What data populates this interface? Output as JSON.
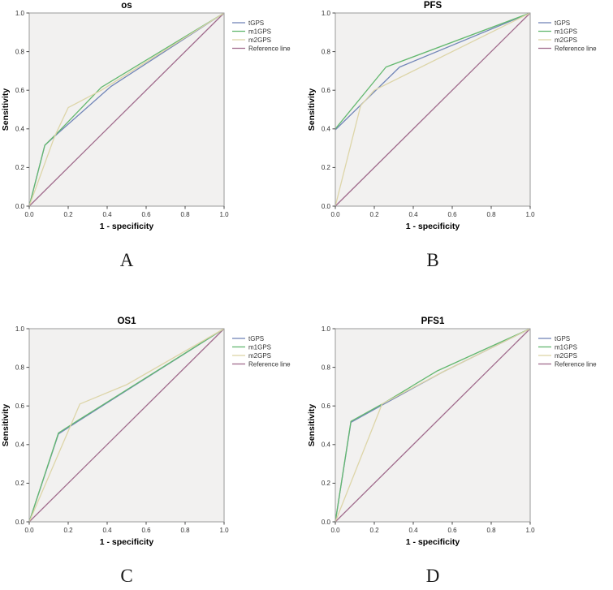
{
  "style": {
    "plot_bg": "#f2f1f0",
    "frame_color": "#9a9a9a",
    "axis_color": "#4a4a4a",
    "text_color": "#333333",
    "title_color": "#000000",
    "series_colors": {
      "tGPS": "#7286b8",
      "m1GPS": "#63b86f",
      "m2GPS": "#ddd5a8",
      "Reference line": "#a06b8c"
    }
  },
  "chart_data": [
    {
      "panel_label": "A",
      "type": "line",
      "title": "os",
      "xlabel": "1 - specificity",
      "ylabel": "Sensitivity",
      "xlim": [
        0,
        1
      ],
      "ylim": [
        0,
        1
      ],
      "xticks": [
        "0.0",
        "0.2",
        "0.4",
        "0.6",
        "0.8",
        "1.0"
      ],
      "yticks": [
        "0.0",
        "0.2",
        "0.4",
        "0.6",
        "0.8",
        "1.0"
      ],
      "grid": false,
      "legend_position": "right",
      "series": [
        {
          "name": "tGPS",
          "color": "#7286b8",
          "points": [
            [
              0,
              0
            ],
            [
              0.08,
              0.315
            ],
            [
              0.15,
              0.38
            ],
            [
              0.42,
              0.62
            ],
            [
              1,
              1
            ]
          ]
        },
        {
          "name": "m1GPS",
          "color": "#63b86f",
          "points": [
            [
              0,
              0
            ],
            [
              0.08,
              0.315
            ],
            [
              0.15,
              0.385
            ],
            [
              0.37,
              0.615
            ],
            [
              1,
              1
            ]
          ]
        },
        {
          "name": "m2GPS",
          "color": "#ddd5a8",
          "points": [
            [
              0,
              0
            ],
            [
              0.13,
              0.36
            ],
            [
              0.2,
              0.51
            ],
            [
              0.37,
              0.6
            ],
            [
              1,
              1
            ]
          ]
        },
        {
          "name": "Reference line",
          "color": "#a06b8c",
          "points": [
            [
              0,
              0
            ],
            [
              1,
              1
            ]
          ]
        }
      ]
    },
    {
      "panel_label": "B",
      "type": "line",
      "title": "PFS",
      "xlabel": "1 - specificity",
      "ylabel": "Sensitivity",
      "xlim": [
        0,
        1
      ],
      "ylim": [
        0,
        1
      ],
      "xticks": [
        "0.0",
        "0.2",
        "0.4",
        "0.6",
        "0.8",
        "1.0"
      ],
      "yticks": [
        "0.0",
        "0.2",
        "0.4",
        "0.6",
        "0.8",
        "1.0"
      ],
      "grid": false,
      "legend_position": "right",
      "series": [
        {
          "name": "tGPS",
          "color": "#7286b8",
          "points": [
            [
              0,
              0.395
            ],
            [
              0.33,
              0.72
            ],
            [
              1,
              1
            ]
          ]
        },
        {
          "name": "m1GPS",
          "color": "#63b86f",
          "points": [
            [
              0,
              0.4
            ],
            [
              0.26,
              0.72
            ],
            [
              1,
              1
            ]
          ]
        },
        {
          "name": "m2GPS",
          "color": "#ddd5a8",
          "points": [
            [
              0,
              0
            ],
            [
              0.13,
              0.52
            ],
            [
              0.2,
              0.6
            ],
            [
              1,
              1
            ]
          ]
        },
        {
          "name": "Reference line",
          "color": "#a06b8c",
          "points": [
            [
              0,
              0
            ],
            [
              1,
              1
            ]
          ]
        }
      ]
    },
    {
      "panel_label": "C",
      "type": "line",
      "title": "OS1",
      "xlabel": "1 - specificity",
      "ylabel": "Sensitivity",
      "xlim": [
        0,
        1
      ],
      "ylim": [
        0,
        1
      ],
      "xticks": [
        "0.0",
        "0.2",
        "0.4",
        "0.6",
        "0.8",
        "1.0"
      ],
      "yticks": [
        "0.0",
        "0.2",
        "0.4",
        "0.6",
        "0.8",
        "1.0"
      ],
      "grid": false,
      "legend_position": "right",
      "series": [
        {
          "name": "tGPS",
          "color": "#7286b8",
          "points": [
            [
              0,
              0
            ],
            [
              0.15,
              0.455
            ],
            [
              0.25,
              0.52
            ],
            [
              1,
              1
            ]
          ]
        },
        {
          "name": "m1GPS",
          "color": "#63b86f",
          "points": [
            [
              0,
              0
            ],
            [
              0.15,
              0.46
            ],
            [
              0.25,
              0.525
            ],
            [
              1,
              1
            ]
          ]
        },
        {
          "name": "m2GPS",
          "color": "#ddd5a8",
          "points": [
            [
              0,
              0
            ],
            [
              0.26,
              0.61
            ],
            [
              0.5,
              0.71
            ],
            [
              1,
              1
            ]
          ]
        },
        {
          "name": "Reference line",
          "color": "#a06b8c",
          "points": [
            [
              0,
              0
            ],
            [
              1,
              1
            ]
          ]
        }
      ]
    },
    {
      "panel_label": "D",
      "type": "line",
      "title": "PFS1",
      "xlabel": "1 - specificity",
      "ylabel": "Sensitivity",
      "xlim": [
        0,
        1
      ],
      "ylim": [
        0,
        1
      ],
      "xticks": [
        "0.0",
        "0.2",
        "0.4",
        "0.6",
        "0.8",
        "1.0"
      ],
      "yticks": [
        "0.0",
        "0.2",
        "0.4",
        "0.6",
        "0.8",
        "1.0"
      ],
      "grid": false,
      "legend_position": "right",
      "series": [
        {
          "name": "tGPS",
          "color": "#7286b8",
          "points": [
            [
              0,
              0
            ],
            [
              0.08,
              0.515
            ],
            [
              0.25,
              0.61
            ],
            [
              0.55,
              0.775
            ],
            [
              1,
              1
            ]
          ]
        },
        {
          "name": "m1GPS",
          "color": "#63b86f",
          "points": [
            [
              0,
              0
            ],
            [
              0.08,
              0.52
            ],
            [
              0.25,
              0.615
            ],
            [
              0.52,
              0.78
            ],
            [
              1,
              1
            ]
          ]
        },
        {
          "name": "m2GPS",
          "color": "#ddd5a8",
          "points": [
            [
              0,
              0
            ],
            [
              0.24,
              0.61
            ],
            [
              0.55,
              0.775
            ],
            [
              1,
              1
            ]
          ]
        },
        {
          "name": "Reference line",
          "color": "#a06b8c",
          "points": [
            [
              0,
              0
            ],
            [
              1,
              1
            ]
          ]
        }
      ]
    }
  ]
}
